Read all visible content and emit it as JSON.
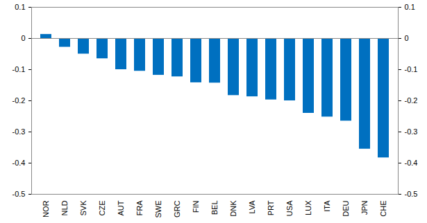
{
  "chart_data": {
    "type": "bar",
    "categories": [
      "NOR",
      "NLD",
      "SVK",
      "CZE",
      "AUT",
      "FRA",
      "SWE",
      "GRC",
      "FIN",
      "BEL",
      "DNK",
      "LVA",
      "PRT",
      "USA",
      "LUX",
      "ITA",
      "DEU",
      "JPN",
      "CHE"
    ],
    "values": [
      0.013,
      -0.028,
      -0.05,
      -0.065,
      -0.1,
      -0.105,
      -0.118,
      -0.123,
      -0.142,
      -0.143,
      -0.183,
      -0.187,
      -0.197,
      -0.2,
      -0.24,
      -0.252,
      -0.265,
      -0.355,
      -0.383
    ],
    "color": "#0070c0",
    "ylim": [
      -0.5,
      0.1
    ],
    "yticks": [
      -0.5,
      -0.4,
      -0.3,
      -0.2,
      -0.1,
      0,
      0.1
    ],
    "grid": false
  }
}
